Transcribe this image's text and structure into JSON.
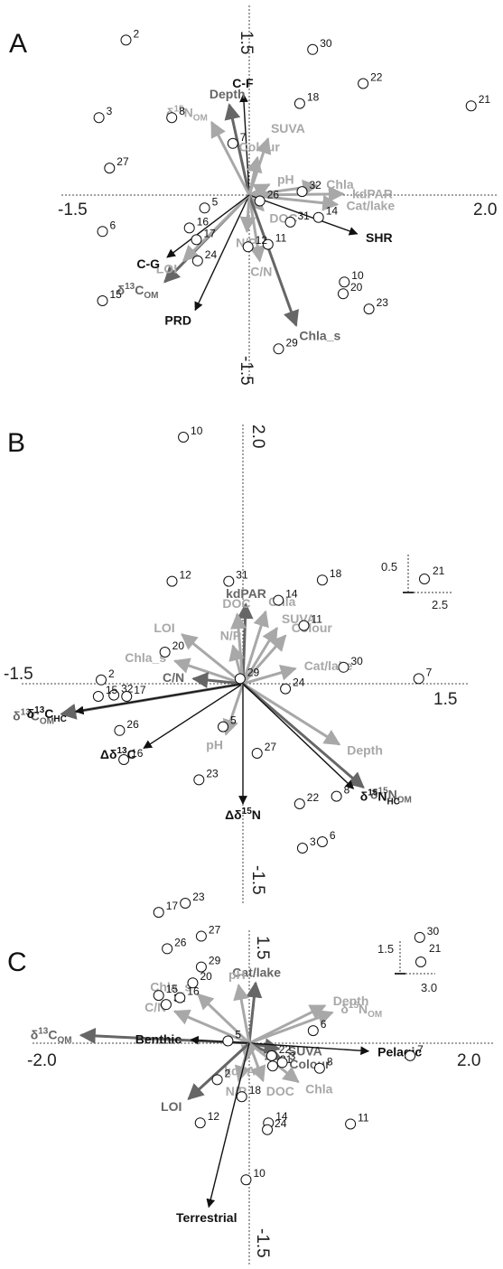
{
  "colors": {
    "black": "#111111",
    "dark": "#666666",
    "light": "#a8a8a8"
  },
  "chart_data": [
    {
      "type": "scatter",
      "panel": "A",
      "x_ticks": [
        "-1.5",
        "2.0"
      ],
      "y_ticks": [
        "1.5",
        "-1.5"
      ],
      "points": [
        {
          "id": "2",
          "x": -1.05,
          "y": 1.32
        },
        {
          "id": "30",
          "x": 0.54,
          "y": 1.24
        },
        {
          "id": "22",
          "x": 0.97,
          "y": 0.95
        },
        {
          "id": "21",
          "x": 1.89,
          "y": 0.76
        },
        {
          "id": "3",
          "x": -1.28,
          "y": 0.66
        },
        {
          "id": "8",
          "x": -0.66,
          "y": 0.66
        },
        {
          "id": "18",
          "x": 0.43,
          "y": 0.78
        },
        {
          "id": "7",
          "x": -0.14,
          "y": 0.44
        },
        {
          "id": "27",
          "x": -1.19,
          "y": 0.23
        },
        {
          "id": "32",
          "x": 0.45,
          "y": 0.03
        },
        {
          "id": "26",
          "x": 0.09,
          "y": -0.05
        },
        {
          "id": "5",
          "x": -0.38,
          "y": -0.11
        },
        {
          "id": "14",
          "x": 0.59,
          "y": -0.19
        },
        {
          "id": "16",
          "x": -0.51,
          "y": -0.28
        },
        {
          "id": "31",
          "x": 0.35,
          "y": -0.23
        },
        {
          "id": "6",
          "x": -1.25,
          "y": -0.31
        },
        {
          "id": "17",
          "x": -0.45,
          "y": -0.38
        },
        {
          "id": "11",
          "x": 0.16,
          "y": -0.42
        },
        {
          "id": "12",
          "x": -0.01,
          "y": -0.44
        },
        {
          "id": "24",
          "x": -0.44,
          "y": -0.56
        },
        {
          "id": "10",
          "x": 0.81,
          "y": -0.74
        },
        {
          "id": "20",
          "x": 0.8,
          "y": -0.84
        },
        {
          "id": "23",
          "x": 1.02,
          "y": -0.97
        },
        {
          "id": "15",
          "x": -1.25,
          "y": -0.9
        },
        {
          "id": "29",
          "x": 0.25,
          "y": -1.31
        }
      ],
      "vectors": [
        {
          "label": "C-F",
          "x": -0.05,
          "y": 0.86,
          "shade": "black",
          "label_sub": ""
        },
        {
          "label": "Depth",
          "x": -0.17,
          "y": 0.77,
          "shade": "dark",
          "label_sub": ""
        },
        {
          "label": "δ15NOM",
          "x": -0.32,
          "y": 0.62,
          "shade": "light",
          "label_sub": ""
        },
        {
          "label": "SUVA",
          "x": 0.16,
          "y": 0.48,
          "shade": "light",
          "label_sub": ""
        },
        {
          "label": "Colour",
          "x": 0.07,
          "y": 0.32,
          "shade": "light",
          "label_sub": ""
        },
        {
          "label": "pH",
          "x": 0.17,
          "y": 0.09,
          "shade": "light",
          "label_sub": ""
        },
        {
          "label": "Chla",
          "x": 0.58,
          "y": 0.08,
          "shade": "light",
          "label_sub": ""
        },
        {
          "label": "kdPAR",
          "x": 0.8,
          "y": 0.01,
          "shade": "light",
          "label_sub": ""
        },
        {
          "label": "Cat/lake",
          "x": 0.75,
          "y": -0.08,
          "shade": "light",
          "label_sub": ""
        },
        {
          "label": "SHR",
          "x": 0.92,
          "y": -0.33,
          "shade": "black",
          "label_sub": ""
        },
        {
          "label": "DOC",
          "x": 0.12,
          "y": -0.13,
          "shade": "light",
          "label_sub": ""
        },
        {
          "label": "C/N",
          "x": 0.09,
          "y": -0.56,
          "shade": "light",
          "label_sub": ""
        },
        {
          "label": "Chla_s",
          "x": 0.4,
          "y": -1.11,
          "shade": "dark",
          "label_sub": ""
        },
        {
          "label": "N/P",
          "x": -0.02,
          "y": -0.31,
          "shade": "light",
          "label_sub": ""
        },
        {
          "label": "PRD",
          "x": -0.46,
          "y": -0.98,
          "shade": "black",
          "label_sub": ""
        },
        {
          "label": "δ13COM",
          "x": -0.72,
          "y": -0.74,
          "shade": "dark",
          "label_sub": ""
        },
        {
          "label": "LOI",
          "x": -0.56,
          "y": -0.56,
          "shade": "light",
          "label_sub": ""
        },
        {
          "label": "C-G",
          "x": -0.7,
          "y": -0.53,
          "shade": "black",
          "label_sub": ""
        }
      ]
    },
    {
      "type": "scatter",
      "panel": "B",
      "x_ticks": [
        "-1.5",
        "1.5"
      ],
      "y_ticks": [
        "2.0",
        "-1.5"
      ],
      "inset": {
        "x_tick": "2.5",
        "y_tick": "0.5",
        "point": "21"
      },
      "points": [
        {
          "id": "10",
          "x": -0.42,
          "y": 1.95
        },
        {
          "id": "12",
          "x": -0.5,
          "y": 0.81
        },
        {
          "id": "31",
          "x": -0.1,
          "y": 0.81
        },
        {
          "id": "18",
          "x": 0.56,
          "y": 0.82
        },
        {
          "id": "14",
          "x": 0.25,
          "y": 0.66
        },
        {
          "id": "11",
          "x": 0.43,
          "y": 0.46
        },
        {
          "id": "30",
          "x": 0.71,
          "y": 0.13
        },
        {
          "id": "20",
          "x": -0.55,
          "y": 0.25
        },
        {
          "id": "29",
          "x": -0.02,
          "y": 0.04
        },
        {
          "id": "7",
          "x": 1.24,
          "y": 0.04
        },
        {
          "id": "2",
          "x": -1.0,
          "y": 0.03
        },
        {
          "id": "32",
          "x": -0.91,
          "y": -0.09
        },
        {
          "id": "17",
          "x": -0.82,
          "y": -0.1
        },
        {
          "id": "15",
          "x": -1.02,
          "y": -0.1
        },
        {
          "id": "24",
          "x": 0.3,
          "y": -0.04
        },
        {
          "id": "26",
          "x": -0.87,
          "y": -0.37
        },
        {
          "id": "16",
          "x": -0.84,
          "y": -0.6
        },
        {
          "id": "5",
          "x": -0.14,
          "y": -0.34
        },
        {
          "id": "23",
          "x": -0.31,
          "y": -0.76
        },
        {
          "id": "27",
          "x": 0.1,
          "y": -0.55
        },
        {
          "id": "22",
          "x": 0.4,
          "y": -0.95
        },
        {
          "id": "8",
          "x": 0.66,
          "y": -0.89
        },
        {
          "id": "3",
          "x": 0.42,
          "y": -1.3
        },
        {
          "id": "6",
          "x": 0.56,
          "y": -1.25
        }
      ],
      "vectors": [
        {
          "label": "kdPAR",
          "x": 0.02,
          "y": 0.63,
          "shade": "dark"
        },
        {
          "label": "DOC",
          "x": -0.04,
          "y": 0.55,
          "shade": "light"
        },
        {
          "label": "Chla",
          "x": 0.16,
          "y": 0.57,
          "shade": "light"
        },
        {
          "label": "N/P",
          "x": -0.07,
          "y": 0.3,
          "shade": "light"
        },
        {
          "label": "LOI",
          "x": -0.43,
          "y": 0.39,
          "shade": "light"
        },
        {
          "label": "SUVA",
          "x": 0.24,
          "y": 0.44,
          "shade": "light"
        },
        {
          "label": "Colour",
          "x": 0.3,
          "y": 0.38,
          "shade": "light"
        },
        {
          "label": "Chla_s",
          "x": -0.48,
          "y": 0.18,
          "shade": "light"
        },
        {
          "label": "C/N",
          "x": -0.35,
          "y": 0.04,
          "shade": "dark"
        },
        {
          "label": "Cat/lake",
          "x": 0.37,
          "y": 0.12,
          "shade": "light"
        },
        {
          "label": "δ13COM",
          "x": -1.28,
          "y": -0.24,
          "shade": "dark"
        },
        {
          "label": "δ13CHC",
          "x": -1.18,
          "y": -0.22,
          "shade": "black"
        },
        {
          "label": "Δδ13C",
          "x": -0.7,
          "y": -0.51,
          "shade": "black"
        },
        {
          "label": "pH",
          "x": -0.12,
          "y": -0.4,
          "shade": "light"
        },
        {
          "label": "Δδ15N",
          "x": 0.0,
          "y": -0.95,
          "shade": "black"
        },
        {
          "label": "Depth",
          "x": 0.68,
          "y": -0.48,
          "shade": "light"
        },
        {
          "label": "δ15NOM",
          "x": 0.85,
          "y": -0.82,
          "shade": "dark"
        },
        {
          "label": "δ15NHC",
          "x": 0.78,
          "y": -0.83,
          "shade": "black"
        }
      ]
    },
    {
      "type": "scatter",
      "panel": "C",
      "x_ticks": [
        "-2.0",
        "2.0"
      ],
      "y_ticks": [
        "1.5",
        "-1.5"
      ],
      "inset": {
        "x_tick": "3.0",
        "y_tick": "1.5",
        "point": "21"
      },
      "points": [
        {
          "id": "23",
          "x": -0.6,
          "y": 1.23
        },
        {
          "id": "17",
          "x": -0.85,
          "y": 1.15
        },
        {
          "id": "27",
          "x": -0.45,
          "y": 0.94
        },
        {
          "id": "26",
          "x": -0.77,
          "y": 0.83
        },
        {
          "id": "30",
          "x": 1.6,
          "y": 0.93
        },
        {
          "id": "29",
          "x": -0.45,
          "y": 0.67
        },
        {
          "id": "20",
          "x": -0.53,
          "y": 0.53
        },
        {
          "id": "15",
          "x": -0.85,
          "y": 0.42
        },
        {
          "id": "32",
          "x": -0.78,
          "y": 0.34
        },
        {
          "id": "16",
          "x": -0.65,
          "y": 0.4
        },
        {
          "id": "6",
          "x": 0.6,
          "y": 0.11
        },
        {
          "id": "7",
          "x": 1.51,
          "y": -0.11
        },
        {
          "id": "5",
          "x": -0.2,
          "y": 0.02
        },
        {
          "id": "22",
          "x": 0.21,
          "y": -0.11
        },
        {
          "id": "31",
          "x": 0.22,
          "y": -0.2
        },
        {
          "id": "3",
          "x": 0.31,
          "y": -0.17
        },
        {
          "id": "8",
          "x": 0.66,
          "y": -0.22
        },
        {
          "id": "2",
          "x": -0.3,
          "y": -0.32
        },
        {
          "id": "18",
          "x": -0.07,
          "y": -0.47
        },
        {
          "id": "12",
          "x": -0.46,
          "y": -0.7
        },
        {
          "id": "14",
          "x": 0.18,
          "y": -0.7
        },
        {
          "id": "24",
          "x": 0.17,
          "y": -0.76
        },
        {
          "id": "11",
          "x": 0.95,
          "y": -0.71
        },
        {
          "id": "10",
          "x": -0.03,
          "y": -1.2
        }
      ],
      "vectors": [
        {
          "label": "Cat/lake",
          "x": 0.06,
          "y": 0.53,
          "shade": "dark"
        },
        {
          "label": "pH",
          "x": -0.1,
          "y": 0.51,
          "shade": "light"
        },
        {
          "label": "Depth",
          "x": 0.71,
          "y": 0.33,
          "shade": "light"
        },
        {
          "label": "δ15NOM",
          "x": 0.78,
          "y": 0.27,
          "shade": "light"
        },
        {
          "label": "Chla_s",
          "x": -0.48,
          "y": 0.43,
          "shade": "light"
        },
        {
          "label": "C/N",
          "x": -0.7,
          "y": 0.28,
          "shade": "light"
        },
        {
          "label": "δ13COM",
          "x": -1.58,
          "y": 0.07,
          "shade": "dark"
        },
        {
          "label": "Benthic",
          "x": -0.55,
          "y": 0.03,
          "shade": "black"
        },
        {
          "label": "SUVA",
          "x": 0.28,
          "y": -0.05,
          "shade": "dark"
        },
        {
          "label": "Pelagic",
          "x": 1.12,
          "y": -0.07,
          "shade": "black"
        },
        {
          "label": "Colour",
          "x": 0.3,
          "y": -0.14,
          "shade": "dark"
        },
        {
          "label": "kdPAR",
          "x": -0.03,
          "y": -0.15,
          "shade": "light"
        },
        {
          "label": "DOC",
          "x": 0.13,
          "y": -0.33,
          "shade": "light"
        },
        {
          "label": "Chla",
          "x": 0.46,
          "y": -0.34,
          "shade": "light"
        },
        {
          "label": "N/P",
          "x": -0.1,
          "y": -0.33,
          "shade": "light"
        },
        {
          "label": "LOI",
          "x": -0.57,
          "y": -0.49,
          "shade": "dark"
        },
        {
          "label": "Terrestrial",
          "x": -0.38,
          "y": -1.44,
          "shade": "black"
        }
      ]
    }
  ]
}
